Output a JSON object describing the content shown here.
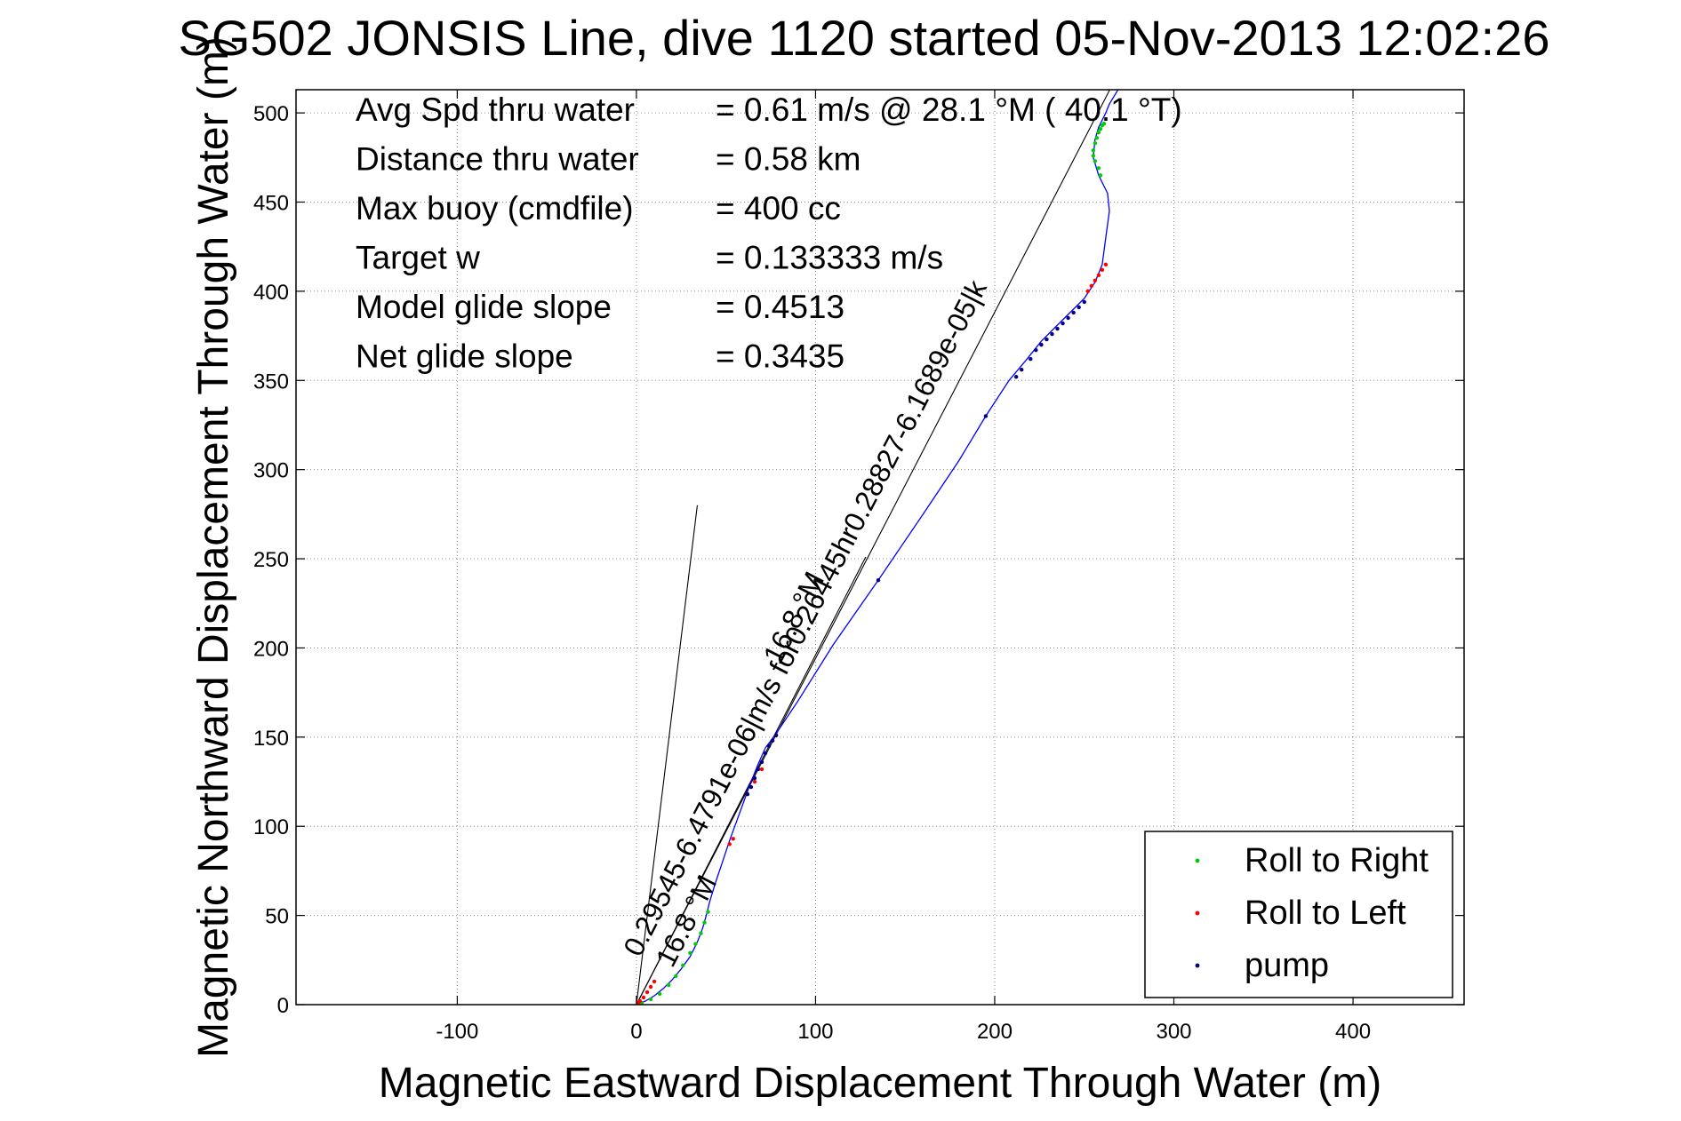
{
  "chart_data": {
    "type": "scatter",
    "title": "SG502 JONSIS Line, dive 1120 started 05-Nov-2013 12:02:26",
    "xlabel": "Magnetic Eastward Displacement Through Water (m)",
    "ylabel": "Magnetic Northward Displacement Through Water (m)",
    "xlim": [
      -190,
      462
    ],
    "ylim": [
      0,
      513
    ],
    "x_ticks": [
      -100,
      0,
      100,
      200,
      300,
      400
    ],
    "x_tick_labels": [
      "-100",
      "0",
      "100",
      "200",
      "300",
      "400"
    ],
    "y_ticks": [
      0,
      50,
      100,
      150,
      200,
      250,
      300,
      350,
      400,
      450,
      500
    ],
    "y_tick_labels": [
      "0",
      "50",
      "100",
      "150",
      "200",
      "250",
      "300",
      "350",
      "400",
      "450",
      "500"
    ],
    "grid": true,
    "legend_position": "bottom-right",
    "colors": {
      "track": "#0000ff",
      "roll_right": "#00cc00",
      "roll_left": "#ff0000",
      "pump": "#000080",
      "axes": "#000000"
    },
    "annotations": [
      {
        "label": "Avg Spd thru water",
        "value": "=  0.61 m/s @  28.1 °M ( 40.1 °T)"
      },
      {
        "label": "Distance thru water",
        "value": "=  0.58 km"
      },
      {
        "label": "Max buoy (cmdfile)",
        "value": "= 400 cc"
      },
      {
        "label": "Target w",
        "value": "= 0.133333 m/s"
      },
      {
        "label": "Model glide slope",
        "value": "= 0.4513"
      },
      {
        "label": "Net glide slope",
        "value": "= 0.3435"
      }
    ],
    "heading_labels": [
      {
        "text": "0.29545-6.4791e-06|m/s for0.26445hr0.28827-6.1689e-05|k",
        "x": 2,
        "y": 26
      },
      {
        "text": "16.8 °M",
        "x": 20,
        "y": 20
      },
      {
        "text": "16.8 °M",
        "x": 80,
        "y": 190
      }
    ],
    "reference_lines": [
      {
        "from": [
          0,
          0
        ],
        "to": [
          34,
          280
        ]
      },
      {
        "from": [
          0,
          0
        ],
        "to": [
          128,
          251
        ]
      },
      {
        "from": [
          0,
          0
        ],
        "to": [
          273,
          530
        ]
      }
    ],
    "track": {
      "name": "",
      "x": [
        0,
        5,
        10,
        15,
        20,
        25,
        30,
        34,
        37,
        39,
        41,
        44,
        48,
        52,
        56,
        60,
        64,
        68,
        72,
        78,
        90,
        110,
        135,
        160,
        180,
        195,
        208,
        218,
        226,
        234,
        242,
        250,
        256,
        260,
        262,
        264,
        263,
        258,
        255,
        256,
        258,
        262,
        264,
        270
      ],
      "y": [
        0,
        2,
        5,
        9,
        14,
        20,
        27,
        35,
        43,
        50,
        58,
        68,
        80,
        92,
        103,
        114,
        125,
        135,
        144,
        152,
        170,
        202,
        238,
        275,
        305,
        330,
        350,
        362,
        372,
        380,
        388,
        396,
        405,
        415,
        430,
        445,
        455,
        465,
        475,
        485,
        492,
        500,
        505,
        515
      ]
    },
    "series": [
      {
        "name": "Roll to Right",
        "x": [
          3,
          8,
          13,
          18,
          22,
          26,
          30,
          33,
          36,
          38,
          40,
          259,
          258,
          256,
          255,
          255,
          256,
          257,
          258,
          259,
          260,
          261
        ],
        "y": [
          1,
          3,
          6,
          11,
          16,
          22,
          29,
          34,
          40,
          46,
          52,
          465,
          469,
          473,
          476,
          479,
          483,
          486,
          489,
          491,
          493,
          494
        ]
      },
      {
        "name": "Roll to Left",
        "x": [
          1,
          2,
          4,
          6,
          8,
          10,
          52,
          54,
          62,
          66,
          70,
          252,
          254,
          256,
          258,
          260,
          262
        ],
        "y": [
          1,
          2,
          4,
          7,
          10,
          13,
          90,
          93,
          118,
          125,
          132,
          400,
          403,
          406,
          409,
          412,
          415
        ]
      },
      {
        "name": "pump",
        "x": [
          62,
          64,
          66,
          68,
          70,
          72,
          74,
          76,
          78,
          135,
          195,
          212,
          215,
          220,
          223,
          226,
          229,
          232,
          235,
          238,
          241,
          244,
          247,
          250
        ],
        "y": [
          118,
          122,
          127,
          132,
          136,
          141,
          145,
          148,
          151,
          238,
          330,
          352,
          356,
          362,
          367,
          370,
          373,
          376,
          379,
          382,
          385,
          388,
          391,
          394
        ]
      }
    ]
  }
}
